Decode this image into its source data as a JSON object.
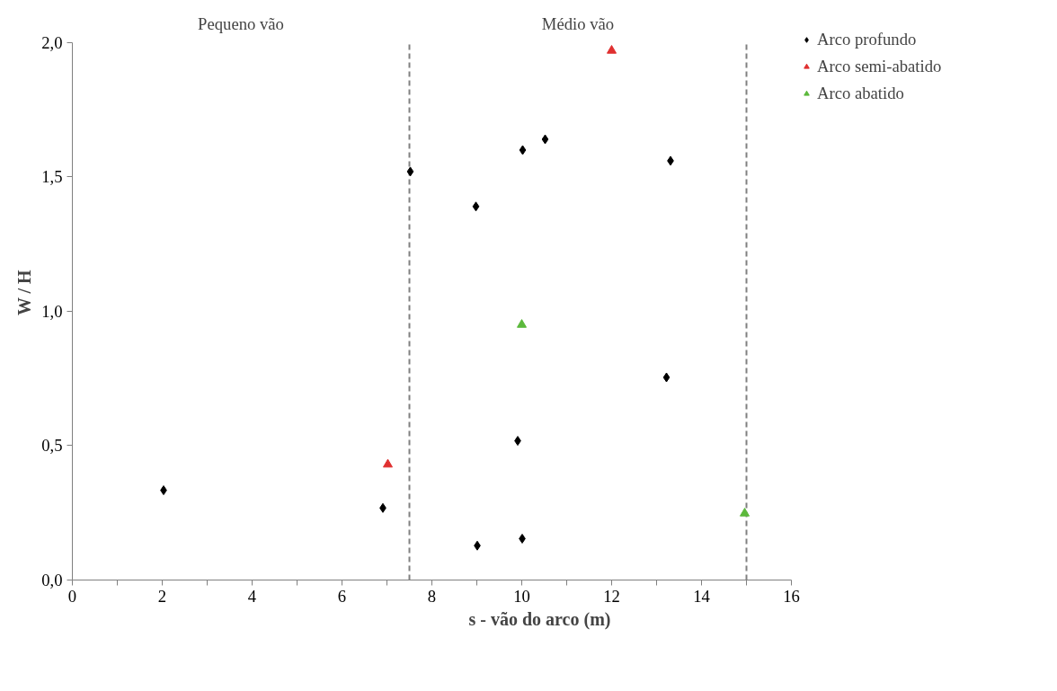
{
  "chart_data": {
    "type": "scatter",
    "xlabel": "s - vão do arco (m)",
    "ylabel": "W / H",
    "series": [
      {
        "name": "Arco profundo",
        "color": "#000000",
        "marker": "diamond",
        "x": [
          2.03,
          6.91,
          7.52,
          8.98,
          9.01,
          9.91,
          10.01,
          10.02,
          10.52,
          13.22,
          13.31
        ],
        "values": [
          0.334,
          0.268,
          1.52,
          1.39,
          0.128,
          0.518,
          0.154,
          1.6,
          1.64,
          0.754,
          1.56
        ]
      },
      {
        "name": "Arco semi-abatido",
        "color": "#e03030",
        "marker": "triangle",
        "x": [
          7.02,
          12.0
        ],
        "values": [
          0.43,
          1.97
        ]
      },
      {
        "name": "Arco abatido",
        "color": "#5cb93c",
        "marker": "triangle",
        "x": [
          10.0,
          14.96
        ],
        "values": [
          0.95,
          0.248
        ]
      }
    ],
    "xlim": [
      0,
      16
    ],
    "ylim": [
      0,
      2.0
    ],
    "xticks": [
      0,
      {
        "value": 1,
        "label": null
      },
      2,
      {
        "value": 3,
        "label": null
      },
      4,
      {
        "value": 5,
        "label": null
      },
      6,
      {
        "value": 7,
        "label": null
      },
      8,
      {
        "value": 9,
        "label": null
      },
      10,
      {
        "value": 11,
        "label": null
      },
      12,
      {
        "value": 13,
        "label": null
      },
      14,
      {
        "value": 15,
        "label": null
      },
      16
    ],
    "yticks": [
      {
        "value": 0,
        "label": "0,0"
      },
      {
        "value": 0.5,
        "label": "0,5"
      },
      {
        "value": 1.0,
        "label": "1,0"
      },
      {
        "value": 1.5,
        "label": "1,5"
      },
      {
        "value": 2.0,
        "label": "2,0"
      }
    ],
    "ref_lines": [
      {
        "axis": "x",
        "value": 7.5,
        "color": "#808080",
        "line_style": "dashed"
      },
      {
        "axis": "x",
        "value": 15,
        "color": "#808080",
        "line_style": "dashed"
      }
    ],
    "annotations": [
      "Pequeno vão",
      "Médio vão"
    ],
    "legend": "top right",
    "grid": false
  }
}
